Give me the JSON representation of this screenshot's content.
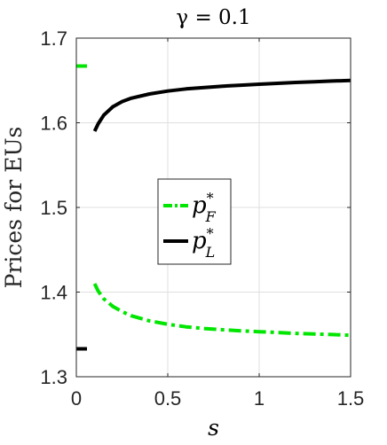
{
  "chart_data": {
    "type": "line",
    "title": "γ = 0.1",
    "xlabel": "s",
    "ylabel": "Prices for EUs",
    "xlim": [
      0,
      1.5
    ],
    "ylim": [
      1.3,
      1.7
    ],
    "xticks": [
      0,
      0.5,
      1,
      1.5
    ],
    "xtick_labels": [
      "0",
      "0.5",
      "1",
      "1.5"
    ],
    "yticks": [
      1.3,
      1.4,
      1.5,
      1.6,
      1.7
    ],
    "ytick_labels": [
      "1.3",
      "1.4",
      "1.5",
      "1.6",
      "1.7"
    ],
    "grid": true,
    "legend_position": "center",
    "series": [
      {
        "name": "p*_F",
        "legend_main": "p",
        "legend_sup": "*",
        "legend_sub": "F",
        "color": "#00e600",
        "line_style": "dash-dot",
        "x": [
          0.1,
          0.12,
          0.15,
          0.2,
          0.25,
          0.3,
          0.4,
          0.5,
          0.6,
          0.7,
          0.8,
          0.9,
          1.0,
          1.1,
          1.2,
          1.3,
          1.4,
          1.5
        ],
        "y": [
          1.41,
          1.401,
          1.392,
          1.383,
          1.377,
          1.372,
          1.366,
          1.362,
          1.359,
          1.357,
          1.3555,
          1.3542,
          1.3532,
          1.3522,
          1.3512,
          1.3505,
          1.3498,
          1.349
        ]
      },
      {
        "name": "p*_L",
        "legend_main": "p",
        "legend_sup": "*",
        "legend_sub": "L",
        "color": "#000000",
        "line_style": "solid",
        "x": [
          0.1,
          0.12,
          0.15,
          0.2,
          0.25,
          0.3,
          0.4,
          0.5,
          0.6,
          0.7,
          0.8,
          0.9,
          1.0,
          1.1,
          1.2,
          1.3,
          1.4,
          1.5
        ],
        "y": [
          1.59,
          1.599,
          1.609,
          1.619,
          1.625,
          1.629,
          1.634,
          1.6375,
          1.64,
          1.6417,
          1.6432,
          1.6444,
          1.6455,
          1.6466,
          1.6476,
          1.6485,
          1.6493,
          1.65
        ]
      }
    ],
    "markers": [
      {
        "series": "p*_F",
        "x": 0,
        "y": 1.667,
        "color": "#00e600"
      },
      {
        "series": "p*_L",
        "x": 0,
        "y": 1.333,
        "color": "#000000"
      }
    ]
  }
}
